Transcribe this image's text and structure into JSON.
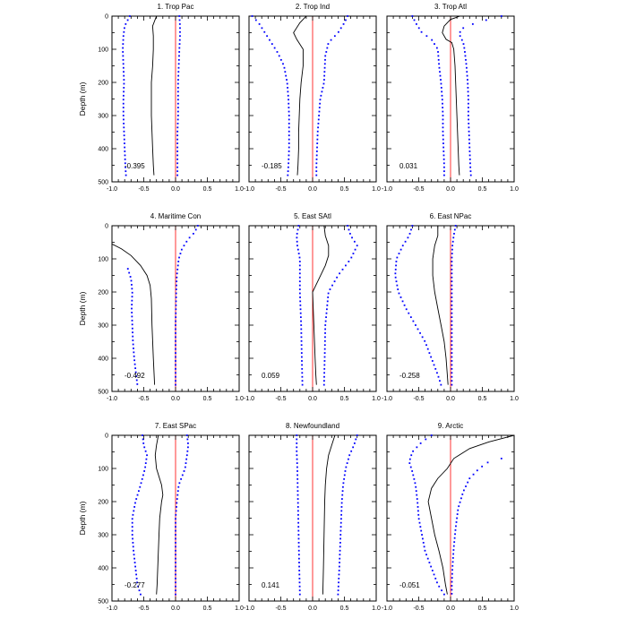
{
  "chart_data": {
    "type": "line",
    "ylabel": "Depth (m)",
    "xlim": [
      -1.0,
      1.0
    ],
    "ylim": [
      0,
      500
    ],
    "x_ticks": [
      "-1.0",
      "-0.5",
      "0.0",
      "0.5",
      "1.0"
    ],
    "y_ticks": [
      0,
      100,
      200,
      300,
      400,
      500
    ],
    "reference_line_color": "#ff0000",
    "mean_line_color": "#000000",
    "bound_dots_color": "#0000ff",
    "panels": [
      {
        "title": "1. Trop Pac",
        "value": "-0.395",
        "mean": [
          [
            -0.3,
            0
          ],
          [
            -0.36,
            30
          ],
          [
            -0.35,
            60
          ],
          [
            -0.35,
            100
          ],
          [
            -0.36,
            150
          ],
          [
            -0.38,
            200
          ],
          [
            -0.38,
            250
          ],
          [
            -0.38,
            300
          ],
          [
            -0.37,
            350
          ],
          [
            -0.36,
            400
          ],
          [
            -0.35,
            450
          ],
          [
            -0.34,
            480
          ]
        ],
        "lower": [
          [
            -0.72,
            0
          ],
          [
            -0.8,
            30
          ],
          [
            -0.82,
            60
          ],
          [
            -0.83,
            100
          ],
          [
            -0.82,
            150
          ],
          [
            -0.81,
            200
          ],
          [
            -0.82,
            250
          ],
          [
            -0.82,
            300
          ],
          [
            -0.81,
            350
          ],
          [
            -0.8,
            400
          ],
          [
            -0.79,
            450
          ],
          [
            -0.78,
            480
          ]
        ],
        "upper": [
          [
            0.06,
            0
          ],
          [
            0.07,
            30
          ],
          [
            0.07,
            60
          ],
          [
            0.06,
            100
          ],
          [
            0.05,
            150
          ],
          [
            0.04,
            200
          ],
          [
            0.04,
            250
          ],
          [
            0.04,
            300
          ],
          [
            0.03,
            350
          ],
          [
            0.03,
            400
          ],
          [
            0.03,
            450
          ],
          [
            0.03,
            480
          ]
        ]
      },
      {
        "title": "2. Trop Ind",
        "value": "-0.185",
        "mean": [
          [
            -0.1,
            0
          ],
          [
            -0.2,
            20
          ],
          [
            -0.3,
            50
          ],
          [
            -0.25,
            70
          ],
          [
            -0.15,
            100
          ],
          [
            -0.15,
            150
          ],
          [
            -0.18,
            200
          ],
          [
            -0.2,
            250
          ],
          [
            -0.21,
            300
          ],
          [
            -0.22,
            350
          ],
          [
            -0.22,
            400
          ],
          [
            -0.23,
            450
          ],
          [
            -0.24,
            480
          ]
        ],
        "lower": [
          [
            -0.95,
            0
          ],
          [
            -0.85,
            20
          ],
          [
            -0.75,
            50
          ],
          [
            -0.65,
            80
          ],
          [
            -0.55,
            110
          ],
          [
            -0.45,
            150
          ],
          [
            -0.4,
            200
          ],
          [
            -0.38,
            250
          ],
          [
            -0.37,
            300
          ],
          [
            -0.37,
            350
          ],
          [
            -0.37,
            400
          ],
          [
            -0.38,
            450
          ],
          [
            -0.39,
            480
          ]
        ],
        "upper": [
          [
            0.55,
            0
          ],
          [
            0.5,
            20
          ],
          [
            0.4,
            50
          ],
          [
            0.25,
            80
          ],
          [
            0.2,
            120
          ],
          [
            0.18,
            200
          ],
          [
            0.12,
            250
          ],
          [
            0.1,
            300
          ],
          [
            0.08,
            350
          ],
          [
            0.07,
            400
          ],
          [
            0.06,
            450
          ],
          [
            0.06,
            480
          ]
        ]
      },
      {
        "title": "3. Trop Atl",
        "value": "0.031",
        "mean": [
          [
            0.15,
            0
          ],
          [
            0.0,
            10
          ],
          [
            -0.1,
            30
          ],
          [
            -0.13,
            50
          ],
          [
            -0.07,
            70
          ],
          [
            0.02,
            80
          ],
          [
            0.05,
            100
          ],
          [
            0.07,
            150
          ],
          [
            0.08,
            200
          ],
          [
            0.09,
            250
          ],
          [
            0.1,
            300
          ],
          [
            0.11,
            350
          ],
          [
            0.12,
            400
          ],
          [
            0.13,
            450
          ],
          [
            0.14,
            480
          ]
        ],
        "lower": [
          [
            -0.6,
            0
          ],
          [
            -0.55,
            20
          ],
          [
            -0.45,
            50
          ],
          [
            -0.3,
            70
          ],
          [
            -0.2,
            100
          ],
          [
            -0.18,
            150
          ],
          [
            -0.15,
            200
          ],
          [
            -0.13,
            250
          ],
          [
            -0.12,
            300
          ],
          [
            -0.12,
            350
          ],
          [
            -0.11,
            400
          ],
          [
            -0.1,
            450
          ],
          [
            -0.1,
            480
          ]
        ],
        "upper": [
          [
            0.8,
            0
          ],
          [
            0.4,
            20
          ],
          [
            0.15,
            40
          ],
          [
            0.15,
            60
          ],
          [
            0.2,
            80
          ],
          [
            0.22,
            100
          ],
          [
            0.25,
            150
          ],
          [
            0.27,
            200
          ],
          [
            0.28,
            250
          ],
          [
            0.28,
            300
          ],
          [
            0.29,
            350
          ],
          [
            0.3,
            400
          ],
          [
            0.31,
            450
          ],
          [
            0.32,
            480
          ]
        ]
      },
      {
        "title": "4. Maritime Con",
        "value": "-0.492",
        "mean": [
          [
            -1.0,
            55
          ],
          [
            -0.85,
            70
          ],
          [
            -0.7,
            90
          ],
          [
            -0.55,
            120
          ],
          [
            -0.45,
            150
          ],
          [
            -0.4,
            180
          ],
          [
            -0.38,
            220
          ],
          [
            -0.37,
            300
          ],
          [
            -0.35,
            400
          ],
          [
            -0.33,
            480
          ]
        ],
        "lower": [
          [
            -0.75,
            130
          ],
          [
            -0.7,
            160
          ],
          [
            -0.68,
            200
          ],
          [
            -0.69,
            250
          ],
          [
            -0.68,
            300
          ],
          [
            -0.67,
            350
          ],
          [
            -0.65,
            400
          ],
          [
            -0.62,
            450
          ],
          [
            -0.6,
            480
          ]
        ],
        "upper": [
          [
            0.35,
            0
          ],
          [
            0.3,
            20
          ],
          [
            0.2,
            40
          ],
          [
            0.1,
            70
          ],
          [
            0.05,
            100
          ],
          [
            0.02,
            150
          ],
          [
            0.01,
            200
          ],
          [
            0.0,
            300
          ],
          [
            0.0,
            400
          ],
          [
            0.0,
            480
          ]
        ]
      },
      {
        "title": "5. East SAtl",
        "value": "0.059",
        "mean": [
          [
            0.18,
            0
          ],
          [
            0.2,
            30
          ],
          [
            0.25,
            60
          ],
          [
            0.25,
            90
          ],
          [
            0.2,
            120
          ],
          [
            0.05,
            180
          ],
          [
            0.0,
            200
          ],
          [
            0.01,
            250
          ],
          [
            0.02,
            300
          ],
          [
            0.03,
            350
          ],
          [
            0.04,
            400
          ],
          [
            0.05,
            450
          ],
          [
            0.06,
            480
          ]
        ],
        "lower": [
          [
            -0.22,
            0
          ],
          [
            -0.25,
            30
          ],
          [
            -0.24,
            60
          ],
          [
            -0.2,
            100
          ],
          [
            -0.2,
            150
          ],
          [
            -0.2,
            200
          ],
          [
            -0.18,
            300
          ],
          [
            -0.17,
            400
          ],
          [
            -0.16,
            480
          ]
        ],
        "upper": [
          [
            0.55,
            0
          ],
          [
            0.6,
            30
          ],
          [
            0.7,
            60
          ],
          [
            0.6,
            100
          ],
          [
            0.4,
            150
          ],
          [
            0.25,
            200
          ],
          [
            0.2,
            300
          ],
          [
            0.19,
            400
          ],
          [
            0.18,
            480
          ]
        ]
      },
      {
        "title": "6. East NPac",
        "value": "-0.258",
        "mean": [
          [
            -0.2,
            0
          ],
          [
            -0.2,
            30
          ],
          [
            -0.25,
            60
          ],
          [
            -0.28,
            100
          ],
          [
            -0.28,
            150
          ],
          [
            -0.25,
            200
          ],
          [
            -0.2,
            250
          ],
          [
            -0.15,
            300
          ],
          [
            -0.1,
            350
          ],
          [
            -0.07,
            400
          ],
          [
            -0.05,
            450
          ],
          [
            -0.04,
            480
          ]
        ],
        "lower": [
          [
            -0.6,
            0
          ],
          [
            -0.65,
            30
          ],
          [
            -0.75,
            60
          ],
          [
            -0.85,
            100
          ],
          [
            -0.87,
            150
          ],
          [
            -0.82,
            200
          ],
          [
            -0.7,
            250
          ],
          [
            -0.55,
            300
          ],
          [
            -0.4,
            350
          ],
          [
            -0.3,
            400
          ],
          [
            -0.2,
            450
          ],
          [
            -0.15,
            480
          ]
        ],
        "upper": [
          [
            0.08,
            0
          ],
          [
            0.05,
            30
          ],
          [
            0.03,
            60
          ],
          [
            0.02,
            100
          ],
          [
            0.02,
            200
          ],
          [
            0.02,
            300
          ],
          [
            0.02,
            400
          ],
          [
            0.02,
            480
          ]
        ]
      },
      {
        "title": "7. East SPac",
        "value": "-0.277",
        "mean": [
          [
            -0.27,
            0
          ],
          [
            -0.3,
            30
          ],
          [
            -0.32,
            60
          ],
          [
            -0.3,
            100
          ],
          [
            -0.22,
            150
          ],
          [
            -0.2,
            180
          ],
          [
            -0.22,
            200
          ],
          [
            -0.25,
            250
          ],
          [
            -0.26,
            300
          ],
          [
            -0.27,
            350
          ],
          [
            -0.28,
            400
          ],
          [
            -0.29,
            450
          ],
          [
            -0.3,
            480
          ]
        ],
        "lower": [
          [
            -0.52,
            0
          ],
          [
            -0.5,
            30
          ],
          [
            -0.45,
            60
          ],
          [
            -0.48,
            100
          ],
          [
            -0.55,
            150
          ],
          [
            -0.63,
            200
          ],
          [
            -0.68,
            250
          ],
          [
            -0.68,
            300
          ],
          [
            -0.66,
            350
          ],
          [
            -0.63,
            400
          ],
          [
            -0.6,
            450
          ],
          [
            -0.55,
            480
          ]
        ],
        "upper": [
          [
            0.18,
            0
          ],
          [
            0.2,
            30
          ],
          [
            0.18,
            60
          ],
          [
            0.15,
            100
          ],
          [
            0.05,
            150
          ],
          [
            0.02,
            200
          ],
          [
            0.0,
            250
          ],
          [
            0.0,
            300
          ],
          [
            0.0,
            400
          ],
          [
            0.0,
            480
          ]
        ]
      },
      {
        "title": "8. Newfoundland",
        "value": "0.141",
        "mean": [
          [
            0.35,
            0
          ],
          [
            0.3,
            30
          ],
          [
            0.25,
            60
          ],
          [
            0.22,
            100
          ],
          [
            0.2,
            150
          ],
          [
            0.19,
            200
          ],
          [
            0.18,
            300
          ],
          [
            0.17,
            400
          ],
          [
            0.16,
            480
          ]
        ],
        "lower": [
          [
            -0.25,
            0
          ],
          [
            -0.25,
            50
          ],
          [
            -0.24,
            100
          ],
          [
            -0.23,
            200
          ],
          [
            -0.22,
            300
          ],
          [
            -0.21,
            400
          ],
          [
            -0.2,
            480
          ]
        ],
        "upper": [
          [
            0.7,
            0
          ],
          [
            0.65,
            30
          ],
          [
            0.58,
            60
          ],
          [
            0.52,
            100
          ],
          [
            0.48,
            150
          ],
          [
            0.46,
            200
          ],
          [
            0.44,
            300
          ],
          [
            0.42,
            400
          ],
          [
            0.4,
            480
          ]
        ]
      },
      {
        "title": "9. Arctic",
        "value": "-0.051",
        "mean": [
          [
            1.0,
            0
          ],
          [
            0.6,
            20
          ],
          [
            0.3,
            40
          ],
          [
            0.05,
            70
          ],
          [
            -0.05,
            100
          ],
          [
            -0.2,
            130
          ],
          [
            -0.3,
            160
          ],
          [
            -0.35,
            200
          ],
          [
            -0.3,
            250
          ],
          [
            -0.25,
            300
          ],
          [
            -0.18,
            350
          ],
          [
            -0.12,
            400
          ],
          [
            -0.08,
            450
          ],
          [
            -0.05,
            480
          ]
        ],
        "lower": [
          [
            -0.3,
            0
          ],
          [
            -0.45,
            20
          ],
          [
            -0.6,
            50
          ],
          [
            -0.65,
            80
          ],
          [
            -0.6,
            110
          ],
          [
            -0.55,
            150
          ],
          [
            -0.52,
            200
          ],
          [
            -0.5,
            250
          ],
          [
            -0.45,
            300
          ],
          [
            -0.4,
            350
          ],
          [
            -0.3,
            400
          ],
          [
            -0.2,
            450
          ],
          [
            -0.1,
            480
          ]
        ],
        "upper": [
          [
            0.8,
            70
          ],
          [
            0.6,
            80
          ],
          [
            0.45,
            100
          ],
          [
            0.3,
            130
          ],
          [
            0.2,
            170
          ],
          [
            0.12,
            220
          ],
          [
            0.08,
            280
          ],
          [
            0.05,
            340
          ],
          [
            0.03,
            400
          ],
          [
            0.02,
            450
          ],
          [
            0.02,
            480
          ]
        ]
      }
    ]
  }
}
